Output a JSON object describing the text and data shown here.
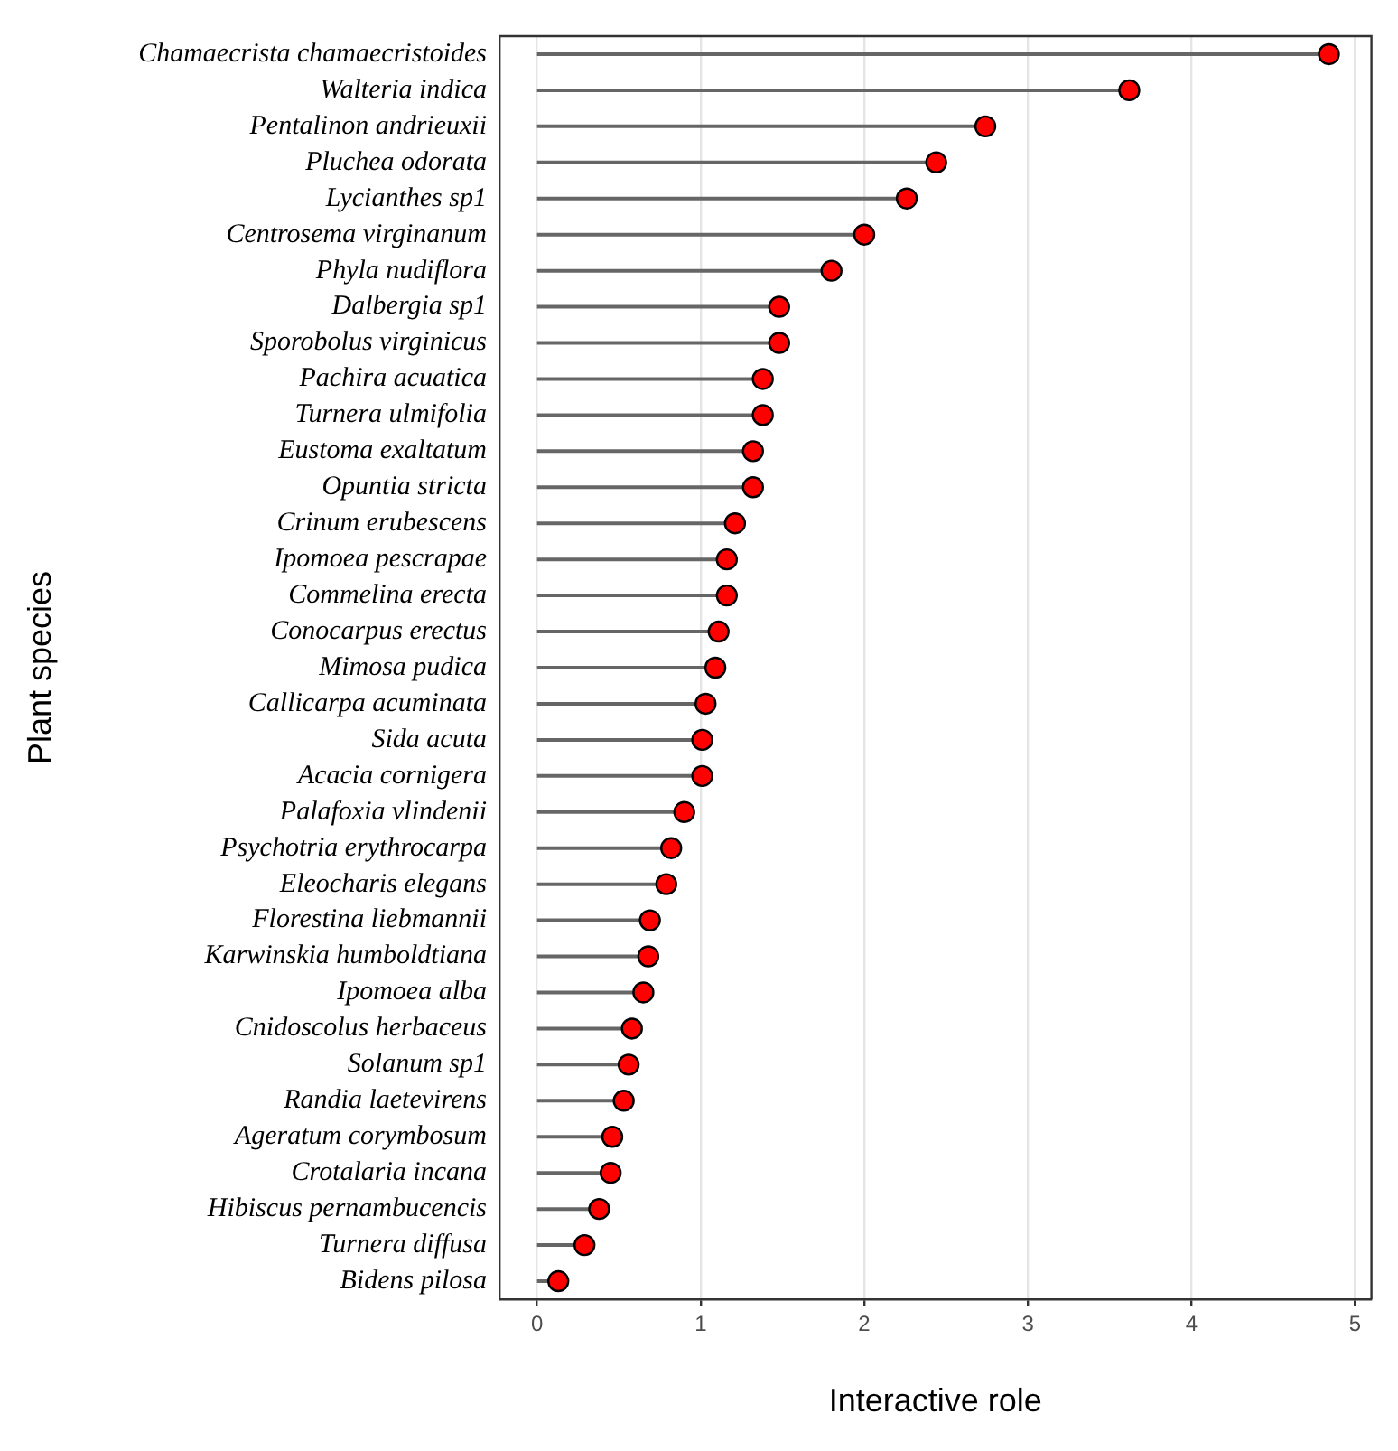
{
  "chart_data": {
    "type": "lollipop",
    "orientation": "horizontal",
    "xlabel": "Interactive role",
    "ylabel": "Plant species",
    "categories": [
      "Chamaecrista chamaecristoides",
      "Walteria indica",
      "Pentalinon andrieuxii",
      "Pluchea odorata",
      "Lycianthes sp1",
      "Centrosema virginanum",
      "Phyla nudiflora",
      "Dalbergia sp1",
      "Sporobolus virginicus",
      "Pachira acuatica",
      "Turnera ulmifolia",
      "Eustoma exaltatum",
      "Opuntia stricta",
      "Crinum erubescens",
      "Ipomoea pescrapae",
      "Commelina erecta",
      "Conocarpus erectus",
      "Mimosa pudica",
      "Callicarpa acuminata",
      "Sida acuta",
      "Acacia cornigera",
      "Palafoxia vlindenii",
      "Psychotria erythrocarpa",
      "Eleocharis elegans",
      "Florestina liebmannii",
      "Karwinskia humboldtiana",
      "Ipomoea alba",
      "Cnidoscolus herbaceus",
      "Solanum sp1",
      "Randia laetevirens",
      "Ageratum corymbosum",
      "Crotalaria incana",
      "Hibiscus pernambucencis",
      "Turnera diffusa",
      "Bidens pilosa"
    ],
    "values": [
      4.84,
      3.62,
      2.74,
      2.44,
      2.26,
      2.0,
      1.8,
      1.48,
      1.48,
      1.38,
      1.38,
      1.32,
      1.32,
      1.21,
      1.16,
      1.16,
      1.11,
      1.09,
      1.03,
      1.01,
      1.01,
      0.9,
      0.82,
      0.79,
      0.69,
      0.68,
      0.65,
      0.58,
      0.56,
      0.53,
      0.46,
      0.45,
      0.38,
      0.29,
      0.13
    ],
    "color": "#ff0000",
    "xlim": [
      -0.23,
      5.1
    ],
    "xticks": [
      0,
      1,
      2,
      3,
      4,
      5
    ],
    "grid": "x",
    "legend": false,
    "marker": "circle"
  }
}
